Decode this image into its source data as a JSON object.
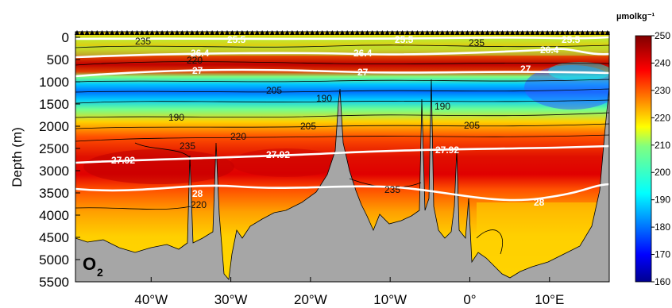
{
  "chart_data": {
    "type": "heatmap",
    "variable_label": "O",
    "variable_subscript": "2",
    "ylabel": "Depth (m)",
    "xlabel": "",
    "y_ticks": [
      0,
      500,
      1000,
      1500,
      2000,
      2500,
      3000,
      3500,
      4000,
      4500,
      5000,
      5500
    ],
    "ylim": [
      0,
      5500
    ],
    "y_inverted": true,
    "x_ticks": [
      {
        "value": -40,
        "label": "40°W"
      },
      {
        "value": -30,
        "label": "30°W"
      },
      {
        "value": -20,
        "label": "20°W"
      },
      {
        "value": -10,
        "label": "10°W"
      },
      {
        "value": 0,
        "label": "0°"
      },
      {
        "value": 10,
        "label": "10°E"
      }
    ],
    "xlim": [
      -49.5,
      17.5
    ],
    "colorbar": {
      "unit": "µmolkg⁻¹",
      "ticks": [
        160,
        170,
        180,
        190,
        200,
        210,
        220,
        230,
        240,
        250
      ],
      "range": [
        160,
        250
      ],
      "colormap": "jet"
    },
    "density_contours": [
      {
        "label": "25.5",
        "color": "#ffffff"
      },
      {
        "label": "26.4",
        "color": "#ffffff"
      },
      {
        "label": "27",
        "color": "#ffffff"
      },
      {
        "label": "27.92",
        "color": "#ffffff"
      },
      {
        "label": "28",
        "color": "#ffffff"
      }
    ],
    "oxygen_contour_labels": [
      "235",
      "220",
      "205",
      "190",
      "220",
      "205",
      "190",
      "235",
      "220",
      "235",
      "190",
      "205",
      "235"
    ],
    "grid": false,
    "bathymetry_color": "#a6a6a6"
  }
}
